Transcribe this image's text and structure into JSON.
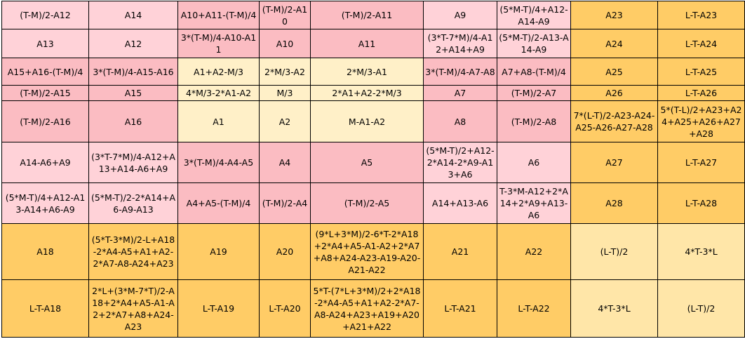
{
  "rows": [
    [
      {
        "t": "(T-M)/2-A12",
        "c": "p"
      },
      {
        "t": "A14",
        "c": "p"
      },
      {
        "t": "A10+A11-(T-M)/4",
        "c": "r"
      },
      {
        "t": "(T-M)/2-A10",
        "c": "r"
      },
      {
        "t": "(T-M)/2-A11",
        "c": "r"
      },
      {
        "t": "A9",
        "c": "p"
      },
      {
        "t": "(5*M-T)/4+A12-A14-A9",
        "c": "p"
      },
      {
        "t": "A23",
        "c": "o"
      },
      {
        "t": "L-T-A23",
        "c": "o"
      }
    ],
    [
      {
        "t": "A13",
        "c": "p"
      },
      {
        "t": "A12",
        "c": "p"
      },
      {
        "t": "3*(T-M)/4-A10-A11",
        "c": "r"
      },
      {
        "t": "A10",
        "c": "r"
      },
      {
        "t": "A11",
        "c": "r"
      },
      {
        "t": "(3*T-7*M)/4-A12+A14+A9",
        "c": "p"
      },
      {
        "t": "(5*M-T)/2-A13-A14-A9",
        "c": "p"
      },
      {
        "t": "A24",
        "c": "o"
      },
      {
        "t": "L-T-A24",
        "c": "o"
      }
    ],
    [
      {
        "t": "A15+A16-(T-M)/4",
        "c": "r"
      },
      {
        "t": "3*(T-M)/4-A15-A16",
        "c": "r"
      },
      {
        "t": "A1+A2-M/3",
        "c": "y"
      },
      {
        "t": "2*M/3-A2",
        "c": "y"
      },
      {
        "t": "2*M/3-A1",
        "c": "y"
      },
      {
        "t": "3*(T-M)/4-A7-A8",
        "c": "r"
      },
      {
        "t": "A7+A8-(T-M)/4",
        "c": "r"
      },
      {
        "t": "A25",
        "c": "o"
      },
      {
        "t": "L-T-A25",
        "c": "o"
      }
    ],
    [
      {
        "t": "(T-M)/2-A15",
        "c": "r"
      },
      {
        "t": "A15",
        "c": "r"
      },
      {
        "t": "4*M/3-2*A1-A2",
        "c": "y"
      },
      {
        "t": "M/3",
        "c": "y"
      },
      {
        "t": "2*A1+A2-2*M/3",
        "c": "y"
      },
      {
        "t": "A7",
        "c": "r"
      },
      {
        "t": "(T-M)/2-A7",
        "c": "r"
      },
      {
        "t": "A26",
        "c": "o"
      },
      {
        "t": "L-T-A26",
        "c": "o"
      }
    ],
    [
      {
        "t": "(T-M)/2-A16",
        "c": "r"
      },
      {
        "t": "A16",
        "c": "r"
      },
      {
        "t": "A1",
        "c": "y"
      },
      {
        "t": "A2",
        "c": "y"
      },
      {
        "t": "M-A1-A2",
        "c": "y"
      },
      {
        "t": "A8",
        "c": "r"
      },
      {
        "t": "(T-M)/2-A8",
        "c": "r"
      },
      {
        "t": "7*(L-T)/2-A23-A24-A25-A26-A27-A28",
        "c": "o"
      },
      {
        "t": "5*(T-L)/2+A23+A24+A25+A26+A27+A28",
        "c": "o"
      }
    ],
    [
      {
        "t": "A14-A6+A9",
        "c": "p"
      },
      {
        "t": "(3*T-7*M)/4-A12+A13+A14-A6+A9",
        "c": "p"
      },
      {
        "t": "3*(T-M)/4-A4-A5",
        "c": "r"
      },
      {
        "t": "A4",
        "c": "r"
      },
      {
        "t": "A5",
        "c": "r"
      },
      {
        "t": "(5*M-T)/2+A12-2*A14-2*A9-A13+A6",
        "c": "p"
      },
      {
        "t": "A6",
        "c": "p"
      },
      {
        "t": "A27",
        "c": "o"
      },
      {
        "t": "L-T-A27",
        "c": "o"
      }
    ],
    [
      {
        "t": "(5*M-T)/4+A12-A13-A14+A6-A9",
        "c": "p"
      },
      {
        "t": "(5*M-T)/2-2*A14+A6-A9-A13",
        "c": "p"
      },
      {
        "t": "A4+A5-(T-M)/4",
        "c": "r"
      },
      {
        "t": "(T-M)/2-A4",
        "c": "r"
      },
      {
        "t": "(T-M)/2-A5",
        "c": "r"
      },
      {
        "t": "A14+A13-A6",
        "c": "p"
      },
      {
        "t": "T-3*M-A12+2*A14+2*A9+A13-A6",
        "c": "p"
      },
      {
        "t": "A28",
        "c": "o"
      },
      {
        "t": "L-T-A28",
        "c": "o"
      }
    ],
    [
      {
        "t": "A18",
        "c": "o"
      },
      {
        "t": "(5*T-3*M)/2-L+A18-2*A4-A5+A1+A2-2*A7-A8-A24+A23",
        "c": "o"
      },
      {
        "t": "A19",
        "c": "o"
      },
      {
        "t": "A20",
        "c": "o"
      },
      {
        "t": "(9*L+3*M)/2-6*T-2*A18+2*A4+A5-A1-A2+2*A7+A8+A24-A23-A19-A20-A21-A22",
        "c": "o"
      },
      {
        "t": "A21",
        "c": "o"
      },
      {
        "t": "A22",
        "c": "o"
      },
      {
        "t": "(L-T)/2",
        "c": "c"
      },
      {
        "t": "4*T-3*L",
        "c": "c"
      }
    ],
    [
      {
        "t": "L-T-A18",
        "c": "o"
      },
      {
        "t": "2*L+(3*M-7*T)/2-A18+2*A4+A5-A1-A2+2*A7+A8+A24-A23",
        "c": "o"
      },
      {
        "t": "L-T-A19",
        "c": "o"
      },
      {
        "t": "L-T-A20",
        "c": "o"
      },
      {
        "t": "5*T-(7*L+3*M)/2+2*A18-2*A4-A5+A1+A2-2*A7-A8-A24+A23+A19+A20+A21+A22",
        "c": "o"
      },
      {
        "t": "L-T-A21",
        "c": "o"
      },
      {
        "t": "L-T-A22",
        "c": "o"
      },
      {
        "t": "4*T-3*L",
        "c": "c"
      },
      {
        "t": "(L-T)/2",
        "c": "c"
      }
    ]
  ]
}
